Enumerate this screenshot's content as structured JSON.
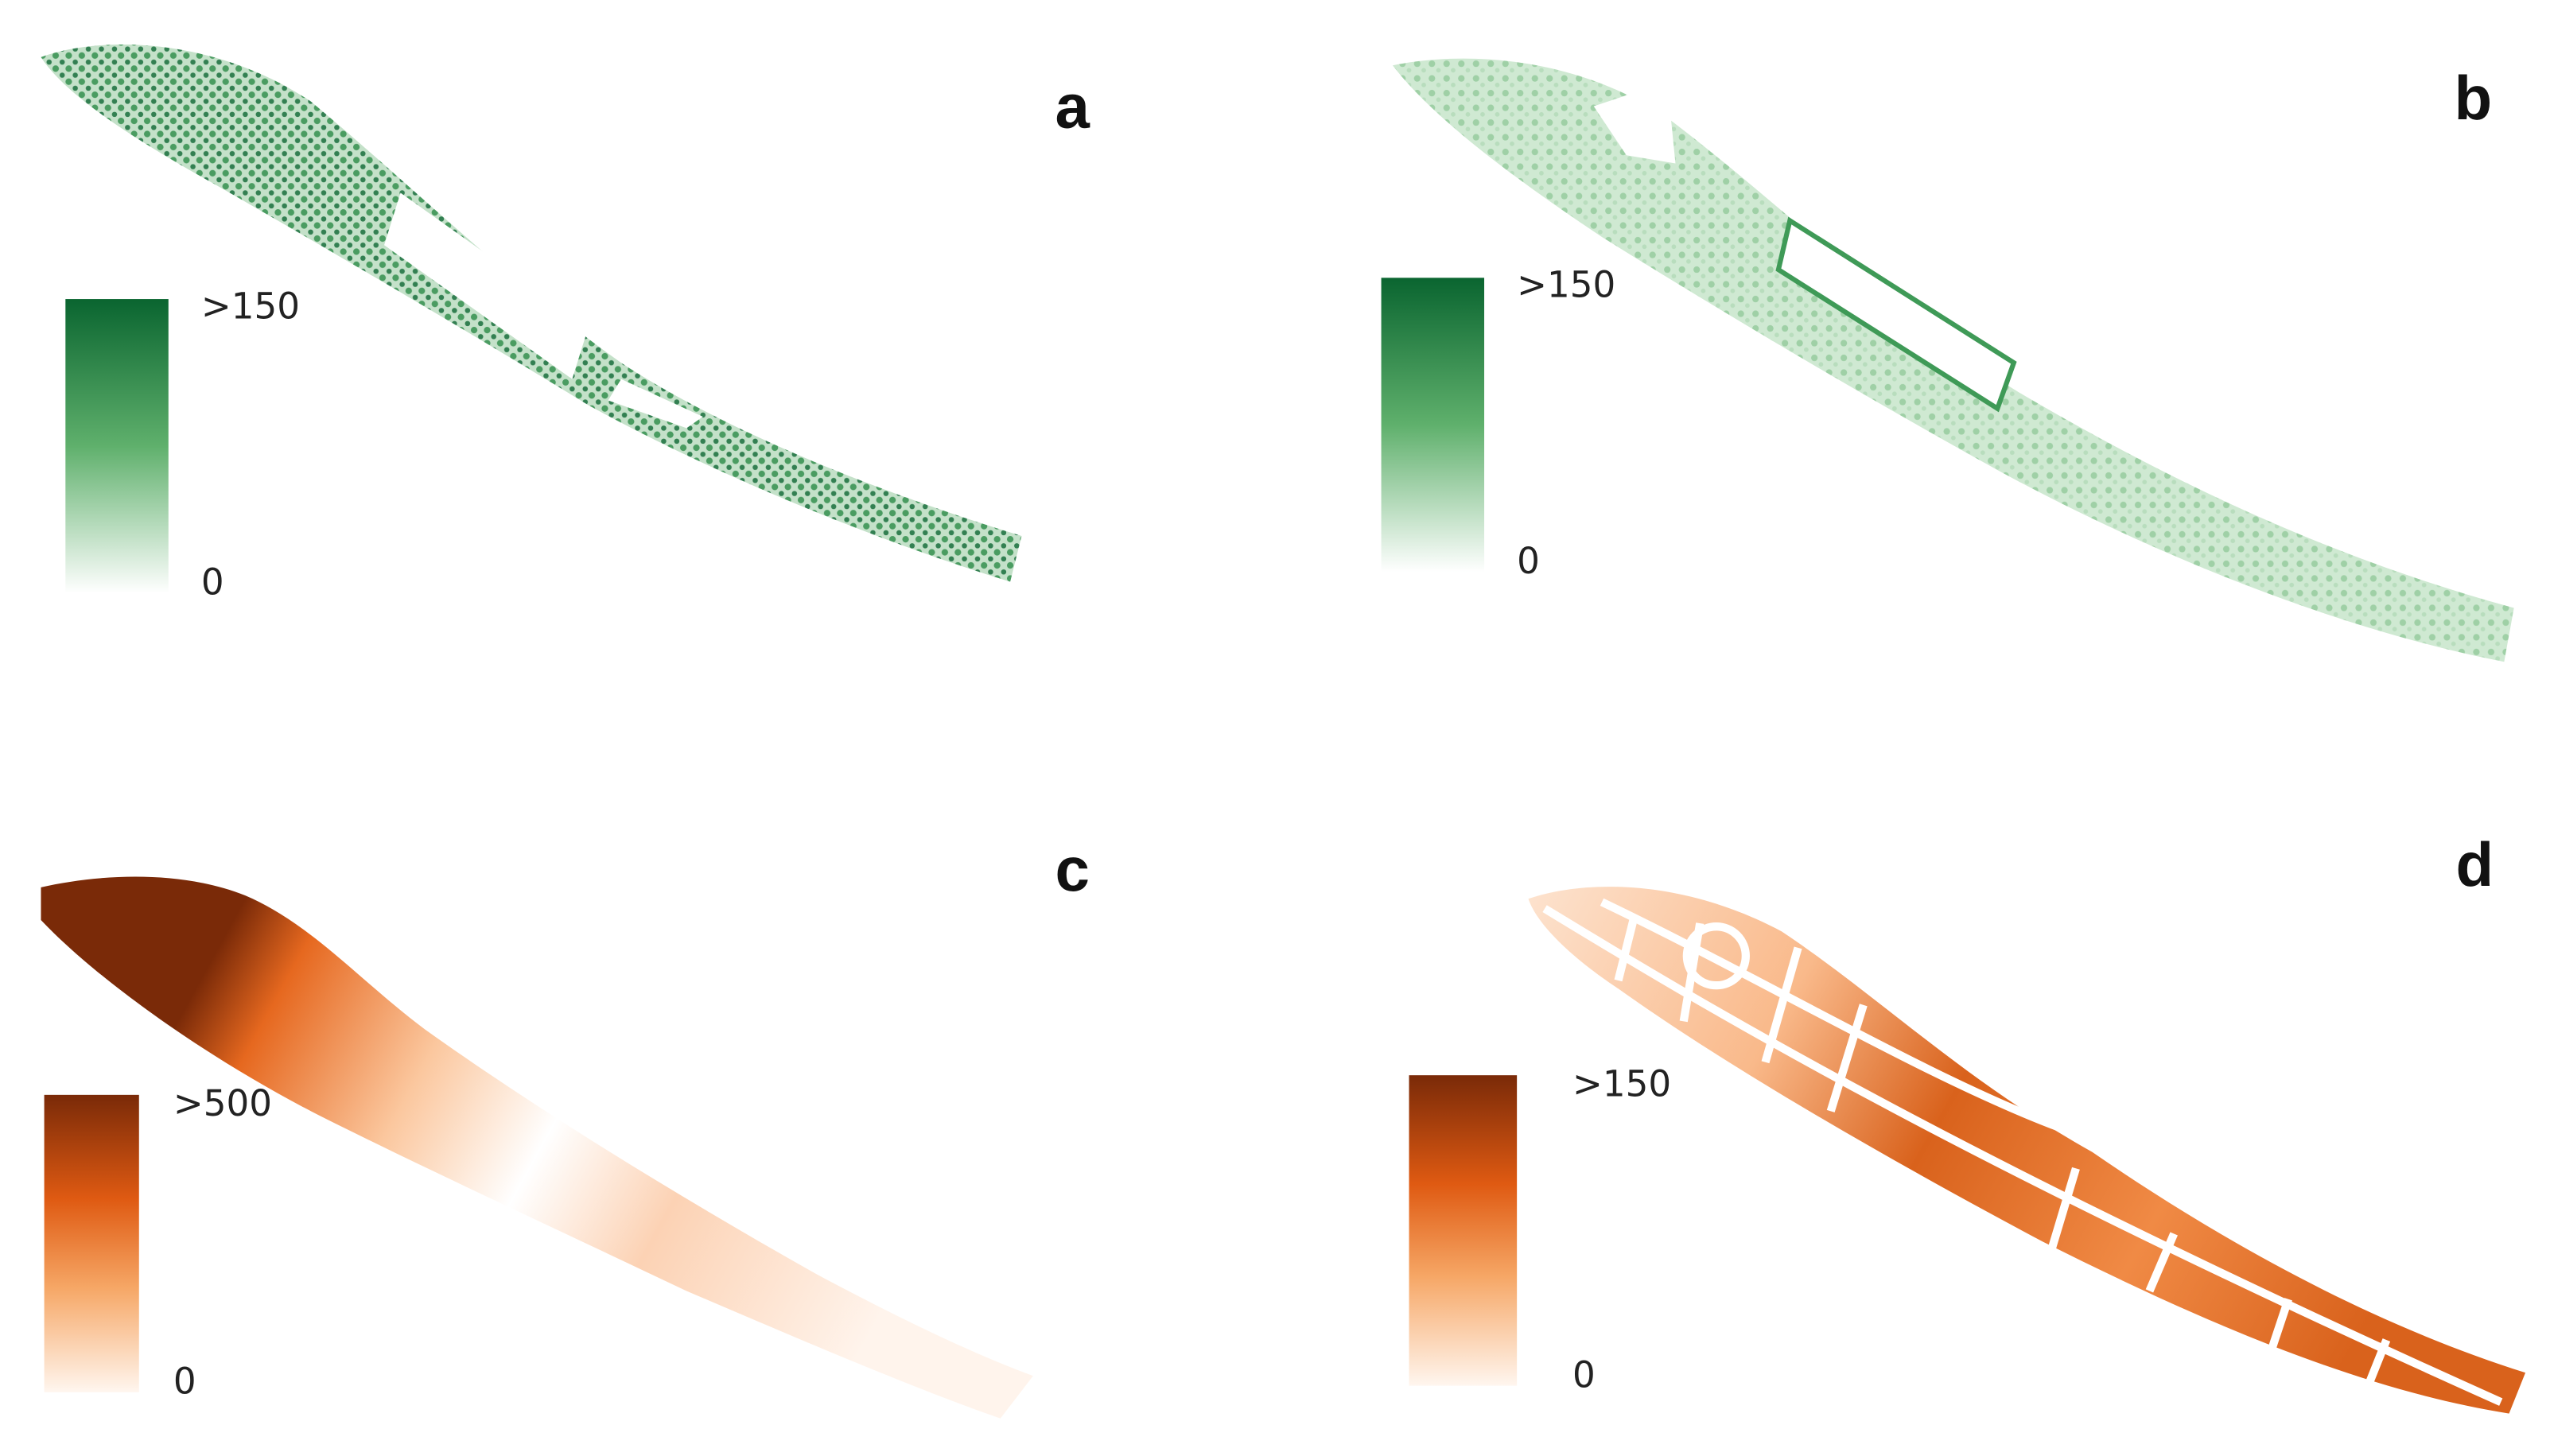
{
  "panels": [
    {
      "label": "a",
      "legend": {
        "max": ">150",
        "min": "0"
      }
    },
    {
      "label": "b",
      "legend": {
        "max": ">150",
        "min": "0"
      }
    },
    {
      "label": "c",
      "legend": {
        "max": ">500",
        "min": "0"
      }
    },
    {
      "label": "d",
      "legend": {
        "max": ">150",
        "min": "0"
      }
    }
  ]
}
